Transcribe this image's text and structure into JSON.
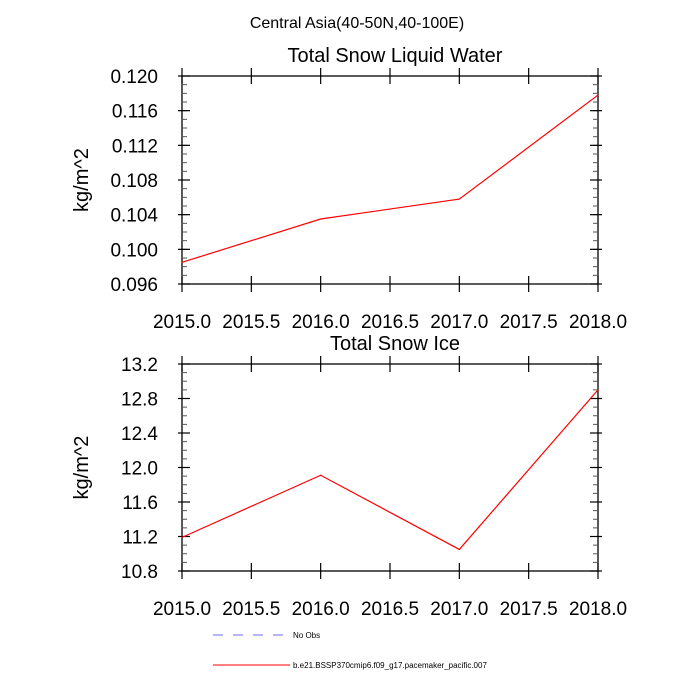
{
  "figure_title": "Central Asia(40-50N,40-100E)",
  "colors": {
    "model": "#ff0000",
    "obs": "#6b6bff",
    "axis": "#000000"
  },
  "legend": [
    {
      "label": "No Obs",
      "style": "dashed",
      "color": "#6b6bff"
    },
    {
      "label": "b.e21.BSSP370cmip6.f09_g17.pacemaker_pacific.007",
      "style": "solid",
      "color": "#ff0000"
    }
  ],
  "chart_data": [
    {
      "type": "line",
      "title": "Total Snow Liquid Water",
      "xlabel": "",
      "ylabel": "kg/m^2",
      "xlim": [
        2015.0,
        2018.0
      ],
      "ylim": [
        0.096,
        0.12
      ],
      "xticks": [
        "2015.0",
        "2015.5",
        "2016.0",
        "2016.5",
        "2017.0",
        "2017.5",
        "2018.0"
      ],
      "xtick_values": [
        2015.0,
        2015.5,
        2016.0,
        2016.5,
        2017.0,
        2017.5,
        2018.0
      ],
      "yticks": [
        "0.096",
        "0.100",
        "0.104",
        "0.108",
        "0.112",
        "0.116",
        "0.120"
      ],
      "ytick_values": [
        0.096,
        0.1,
        0.104,
        0.108,
        0.112,
        0.116,
        0.12
      ],
      "yminor_step": 0.001,
      "grid": false,
      "series": [
        {
          "name": "b.e21.BSSP370cmip6.f09_g17.pacemaker_pacific.007",
          "x": [
            2015,
            2016,
            2017,
            2018
          ],
          "y": [
            0.0985,
            0.1035,
            0.1058,
            0.1178
          ]
        }
      ]
    },
    {
      "type": "line",
      "title": "Total Snow Ice",
      "xlabel": "",
      "ylabel": "kg/m^2",
      "xlim": [
        2015.0,
        2018.0
      ],
      "ylim": [
        10.8,
        13.2
      ],
      "xticks": [
        "2015.0",
        "2015.5",
        "2016.0",
        "2016.5",
        "2017.0",
        "2017.5",
        "2018.0"
      ],
      "xtick_values": [
        2015.0,
        2015.5,
        2016.0,
        2016.5,
        2017.0,
        2017.5,
        2018.0
      ],
      "yticks": [
        "10.8",
        "11.2",
        "11.6",
        "12.0",
        "12.4",
        "12.8",
        "13.2"
      ],
      "ytick_values": [
        10.8,
        11.2,
        11.6,
        12.0,
        12.4,
        12.8,
        13.2
      ],
      "yminor_step": 0.1,
      "grid": false,
      "series": [
        {
          "name": "b.e21.BSSP370cmip6.f09_g17.pacemaker_pacific.007",
          "x": [
            2015,
            2016,
            2017,
            2018
          ],
          "y": [
            11.19,
            11.91,
            11.05,
            12.9
          ]
        }
      ]
    }
  ]
}
